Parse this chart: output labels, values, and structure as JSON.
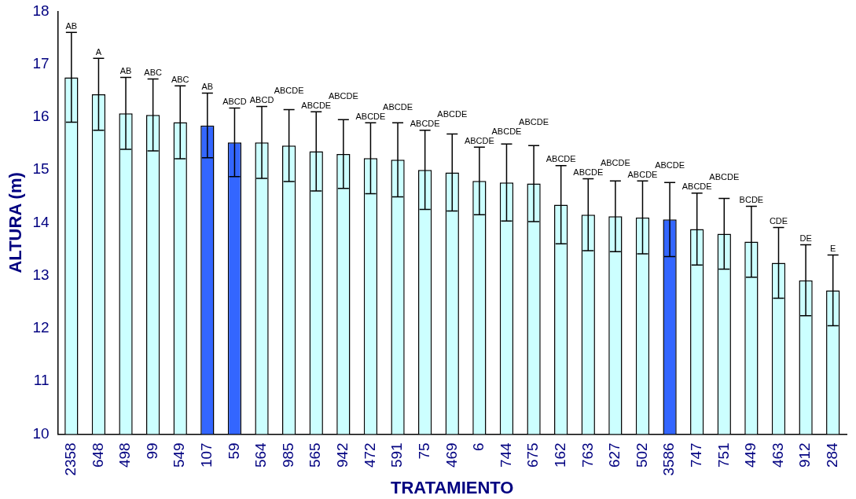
{
  "chart_data": {
    "type": "bar",
    "xlabel": "TRATAMIENTO",
    "ylabel": "ALTURA (m)",
    "categories": [
      "2358",
      "648",
      "498",
      "99",
      "549",
      "107",
      "59",
      "564",
      "985",
      "565",
      "942",
      "472",
      "591",
      "75",
      "469",
      "6",
      "744",
      "675",
      "162",
      "763",
      "627",
      "502",
      "3586",
      "747",
      "751",
      "449",
      "463",
      "912",
      "284"
    ],
    "values": [
      16.75,
      16.43,
      16.07,
      16.04,
      15.9,
      15.84,
      15.52,
      15.52,
      15.46,
      15.35,
      15.3,
      15.22,
      15.19,
      15.0,
      14.95,
      14.79,
      14.76,
      14.74,
      14.34,
      14.15,
      14.12,
      14.1,
      14.06,
      13.88,
      13.79,
      13.64,
      13.24,
      12.91,
      12.72
    ],
    "errors": [
      0.85,
      0.68,
      0.68,
      0.68,
      0.69,
      0.61,
      0.65,
      0.68,
      0.68,
      0.75,
      0.65,
      0.67,
      0.7,
      0.75,
      0.73,
      0.64,
      0.73,
      0.72,
      0.74,
      0.68,
      0.67,
      0.69,
      0.7,
      0.68,
      0.67,
      0.67,
      0.67,
      0.67,
      0.67
    ],
    "colors": [
      "#ccffff",
      "#ccffff",
      "#ccffff",
      "#ccffff",
      "#ccffff",
      "#3366ff",
      "#3366ff",
      "#ccffff",
      "#ccffff",
      "#ccffff",
      "#ccffff",
      "#ccffff",
      "#ccffff",
      "#ccffff",
      "#ccffff",
      "#ccffff",
      "#ccffff",
      "#ccffff",
      "#ccffff",
      "#ccffff",
      "#ccffff",
      "#ccffff",
      "#3366ff",
      "#ccffff",
      "#ccffff",
      "#ccffff",
      "#ccffff",
      "#ccffff",
      "#ccffff"
    ],
    "ylim": [
      10,
      18
    ],
    "yticks": [
      10,
      11,
      12,
      13,
      14,
      15,
      16,
      17,
      18
    ],
    "grid": false,
    "legend": false,
    "annotations": [
      {
        "text": "AB",
        "x": "2358",
        "y": 17.6
      },
      {
        "text": "A",
        "x": "648",
        "y": 17.11
      },
      {
        "text": "AB",
        "x": "498",
        "y": 16.75
      },
      {
        "text": "ABC",
        "x": "99",
        "y": 16.72
      },
      {
        "text": "ABC",
        "x": "549",
        "y": 16.59
      },
      {
        "text": "AB",
        "x": "107",
        "y": 16.45
      },
      {
        "text": "ABCD",
        "x": "59",
        "y": 16.17
      },
      {
        "text": "ABCD",
        "x": "564",
        "y": 16.2
      },
      {
        "text": "ABCDE",
        "x": "985",
        "y": 16.14
      },
      {
        "text": "ABCDE",
        "x": "565",
        "y": 16.1
      },
      {
        "text": "ABCDE",
        "x": "942",
        "y": 15.95
      },
      {
        "text": "ABCDE",
        "x": "472",
        "y": 15.89
      },
      {
        "text": "ABCDE",
        "x": "591",
        "y": 15.89
      },
      {
        "text": "ABCDE",
        "x": "75",
        "y": 15.75
      },
      {
        "text": "ABCDE",
        "x": "469",
        "y": 15.68
      },
      {
        "text": "ABCDE",
        "x": "6",
        "y": 15.43
      },
      {
        "text": "ABCDE",
        "x": "744",
        "y": 15.49
      },
      {
        "text": "ABCDE",
        "x": "675",
        "y": 15.46
      },
      {
        "text": "ABCDE",
        "x": "162",
        "y": 15.08
      },
      {
        "text": "ABCDE",
        "x": "763",
        "y": 14.83
      },
      {
        "text": "ABCDE",
        "x": "627",
        "y": 14.79
      },
      {
        "text": "ABCDE",
        "x": "502",
        "y": 14.79
      },
      {
        "text": "ABCDE",
        "x": "3586",
        "y": 14.76
      },
      {
        "text": "ABCDE",
        "x": "747",
        "y": 14.56
      },
      {
        "text": "ABCDE",
        "x": "751",
        "y": 14.46
      },
      {
        "text": "BCDE",
        "x": "449",
        "y": 14.31
      },
      {
        "text": "CDE",
        "x": "463",
        "y": 13.91
      },
      {
        "text": "DE",
        "x": "912",
        "y": 13.58
      },
      {
        "text": "E",
        "x": "284",
        "y": 13.39
      }
    ]
  }
}
